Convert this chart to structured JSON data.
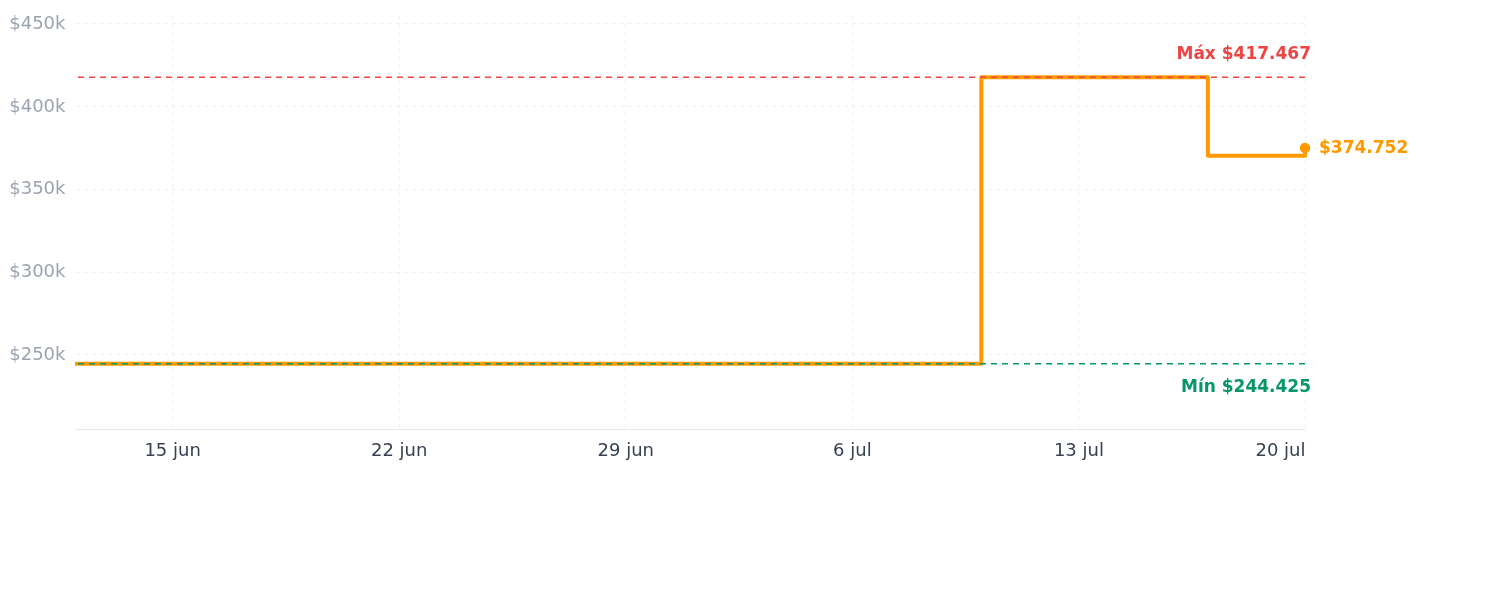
{
  "chart_data": {
    "type": "step",
    "x": [
      "--06-12",
      "--07-10",
      "--07-17",
      "--07-20"
    ],
    "series": [
      {
        "color": "#ff9900",
        "values": [
          244425,
          417467,
          370000,
          374752
        ],
        "value_labels": [
          null,
          null,
          null,
          "$374.752"
        ]
      }
    ],
    "xlim": [
      "--06-12",
      "--07-20"
    ],
    "xticks": [
      {
        "value": "--06-15",
        "label": "15 jun"
      },
      {
        "value": "--06-22",
        "label": "22 jun"
      },
      {
        "value": "--06-29",
        "label": "29 jun"
      },
      {
        "value": "--07-06",
        "label": "6 jul"
      },
      {
        "value": "--07-13",
        "label": "13 jul"
      },
      {
        "value": "--07-20",
        "label": "20 jul"
      }
    ],
    "ylim": [
      205000,
      455000
    ],
    "yticks": [
      {
        "value": 250000,
        "label": "$250k"
      },
      {
        "value": 300000,
        "label": "$300k"
      },
      {
        "value": 350000,
        "label": "$350k"
      },
      {
        "value": 400000,
        "label": "$400k"
      },
      {
        "value": 450000,
        "label": "$450k"
      }
    ],
    "ref_lines": [
      {
        "axis": "y",
        "value": 417467,
        "label": "Máx $417.467",
        "color": "#ef4444",
        "line_style": "dashed"
      },
      {
        "axis": "y",
        "value": 244425,
        "label": "Mín $244.425",
        "color": "#059669",
        "line_style": "dashed"
      }
    ],
    "grid": true,
    "marker": "none",
    "line_style": "solid"
  }
}
